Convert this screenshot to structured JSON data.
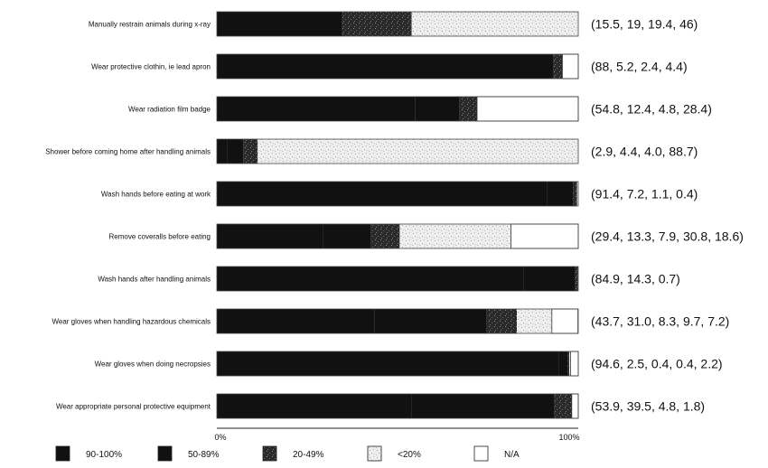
{
  "chart_data": {
    "type": "bar",
    "orientation": "horizontal",
    "stacked": true,
    "percent_stacked": true,
    "categories": [
      "Manually restrain animals during x-ray",
      "Wear protective clothin, ie lead apron",
      "Wear radiation film badge",
      "Shower before coming home after handling animals",
      "Wash hands before eating at work",
      "Remove coveralls before eating",
      "Wash hands after handling animals",
      "Wear gloves when handling hazardous chemicals",
      "Wear gloves when doing necropsies",
      "Wear appropriate personal protective equipment"
    ],
    "data_labels": [
      "(15.5, 19, 19.4, 46)",
      "(88, 5.2, 2.4, 4.4)",
      "(54.8, 12.4, 4.8, 28.4)",
      "(2.9, 4.4, 4.0, 88.7)",
      "(91.4, 7.2, 1.1, 0.4)",
      "(29.4, 13.3, 7.9, 30.8, 18.6)",
      "(84.9, 14.3, 0.7)",
      "(43.7, 31.0, 8.3, 9.7, 7.2)",
      "(94.6, 2.5, 0.4, 0.4, 2.2)",
      "(53.9, 39.5, 4.8, 1.8)"
    ],
    "series": [
      {
        "name": "90-100%",
        "color": "#111111",
        "pattern": "solid",
        "values": [
          15.5,
          88,
          54.8,
          2.9,
          91.4,
          29.4,
          84.9,
          43.7,
          94.6,
          53.9
        ]
      },
      {
        "name": "50-89%",
        "color": "#111111",
        "pattern": "solid",
        "values": [
          19,
          5.2,
          12.4,
          4.4,
          7.2,
          13.3,
          14.3,
          31.0,
          2.5,
          39.5
        ]
      },
      {
        "name": "20-49%",
        "color": "#3a3a3a",
        "pattern": "dark-speckle",
        "values": [
          19.4,
          2.4,
          4.8,
          4.0,
          1.1,
          7.9,
          0.7,
          8.3,
          0.4,
          4.8
        ]
      },
      {
        "name": "<20%",
        "color": "#e8e8e8",
        "pattern": "light-speckle",
        "values": [
          46,
          0,
          0,
          88.7,
          0.4,
          30.8,
          0,
          9.7,
          0.4,
          0
        ]
      },
      {
        "name": "N/A",
        "color": "#ffffff",
        "pattern": "white",
        "values": [
          0,
          4.4,
          28.4,
          0,
          0,
          18.6,
          0,
          7.2,
          2.2,
          1.8
        ]
      }
    ],
    "xlim": [
      0,
      100
    ],
    "x_ticks": [
      "0%",
      "100%"
    ],
    "legend_position": "bottom",
    "grid": false
  }
}
